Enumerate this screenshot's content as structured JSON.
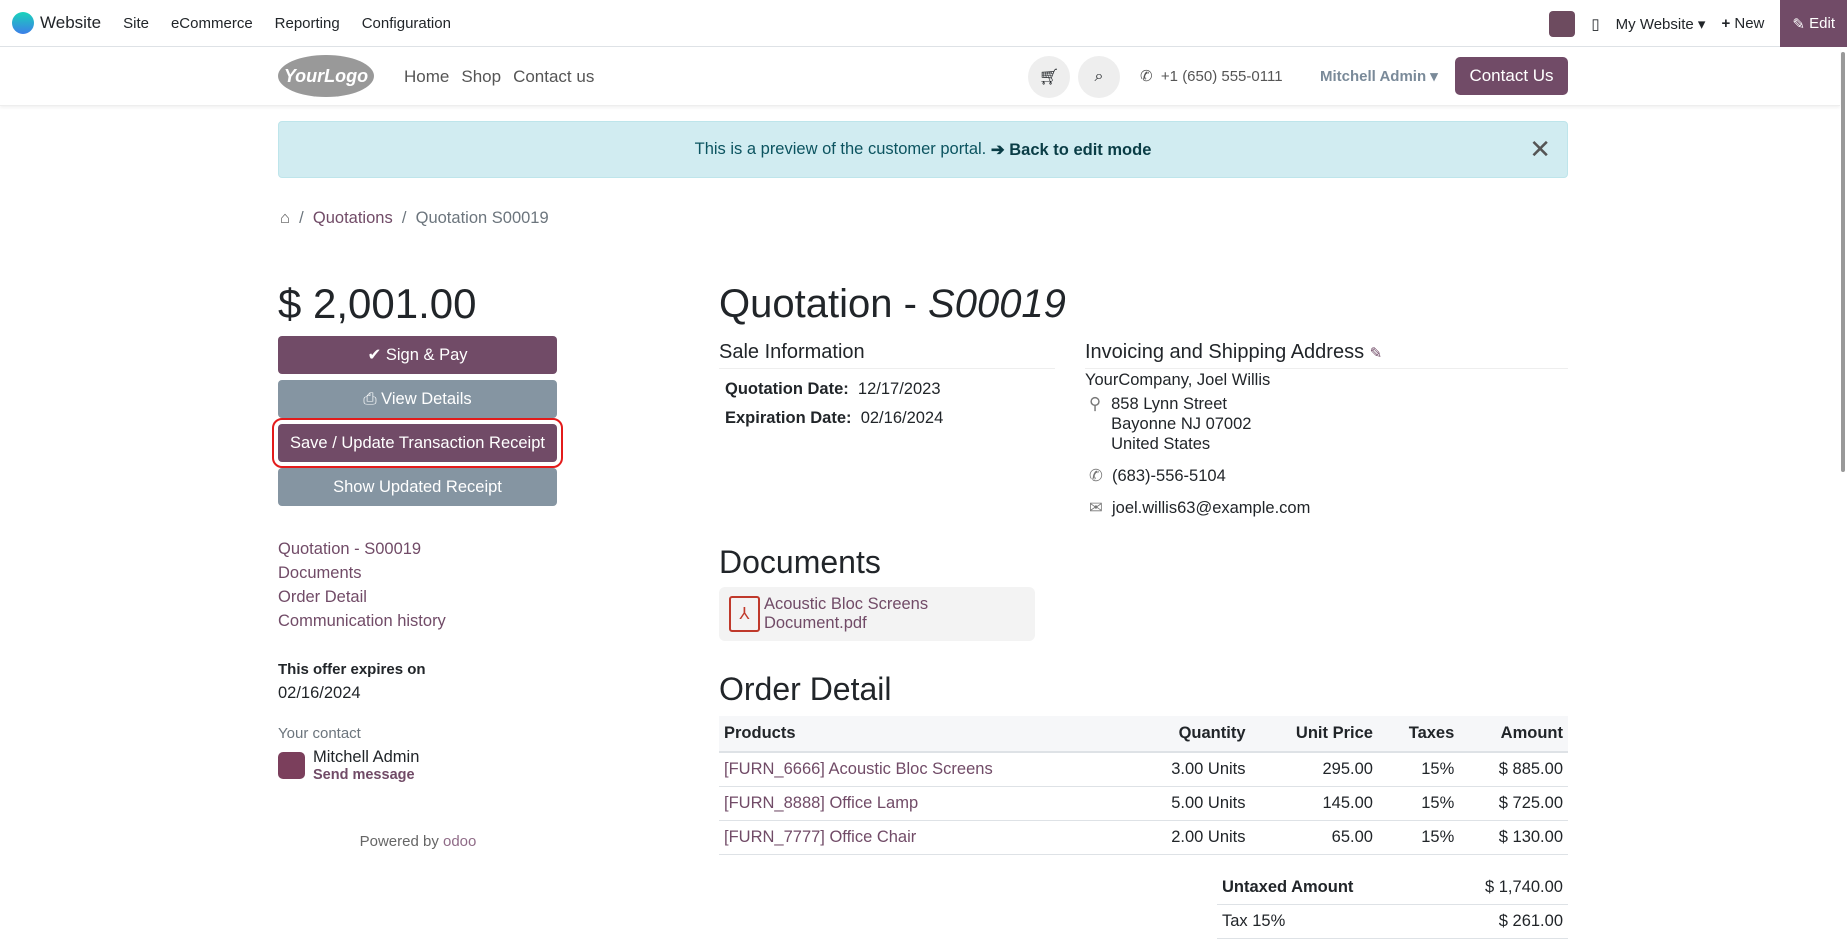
{
  "topbar": {
    "app": "Website",
    "menus": [
      "Site",
      "eCommerce",
      "Reporting",
      "Configuration"
    ],
    "website": "My Website",
    "new": "New",
    "edit": "Edit"
  },
  "header": {
    "logo": "YourLogo",
    "nav": [
      "Home",
      "Shop",
      "Contact us"
    ],
    "phone": "+1 (650) 555-0111",
    "user": "Mitchell Admin",
    "contact": "Contact Us"
  },
  "alert": {
    "text": "This is a preview of the customer portal.",
    "link": "➔ Back to edit mode"
  },
  "breadcrumb": {
    "items": [
      "Quotations",
      "Quotation S00019"
    ]
  },
  "sidebar": {
    "amount": "$ 2,001.00",
    "sign_pay": "Sign & Pay",
    "view_details": "View Details",
    "save_receipt": "Save / Update Transaction Receipt",
    "show_receipt": "Show Updated Receipt",
    "links": [
      "Quotation - S00019",
      "Documents",
      "Order Detail",
      "Communication history"
    ],
    "expires_label": "This offer expires on",
    "expires_date": "02/16/2024",
    "contact_label": "Your contact",
    "contact_name": "Mitchell Admin",
    "send_message": "Send message",
    "powered": "Powered by",
    "odoo": "odoo"
  },
  "main": {
    "title_prefix": "Quotation - ",
    "title_ref": "S00019",
    "sale_info": "Sale Information",
    "quotation_date_label": "Quotation Date:",
    "quotation_date": "12/17/2023",
    "expiration_date_label": "Expiration Date:",
    "expiration_date": "02/16/2024",
    "address_title": "Invoicing and Shipping Address",
    "customer": "YourCompany, Joel Willis",
    "street": "858 Lynn Street",
    "city": "Bayonne NJ 07002",
    "country": "United States",
    "phone": "(683)-556-5104",
    "email": "joel.willis63@example.com",
    "documents_title": "Documents",
    "document": "Acoustic Bloc Screens Document.pdf",
    "order_title": "Order Detail",
    "columns": [
      "Products",
      "Quantity",
      "Unit Price",
      "Taxes",
      "Amount"
    ],
    "rows": [
      [
        "[FURN_6666] Acoustic Bloc Screens",
        "3.00 Units",
        "295.00",
        "15%",
        "$ 885.00"
      ],
      [
        "[FURN_8888] Office Lamp",
        "5.00 Units",
        "145.00",
        "15%",
        "$ 725.00"
      ],
      [
        "[FURN_7777] Office Chair",
        "2.00 Units",
        "65.00",
        "15%",
        "$ 130.00"
      ]
    ],
    "untaxed_label": "Untaxed Amount",
    "untaxed": "$ 1,740.00",
    "tax_label": "Tax 15%",
    "tax": "$ 261.00"
  }
}
